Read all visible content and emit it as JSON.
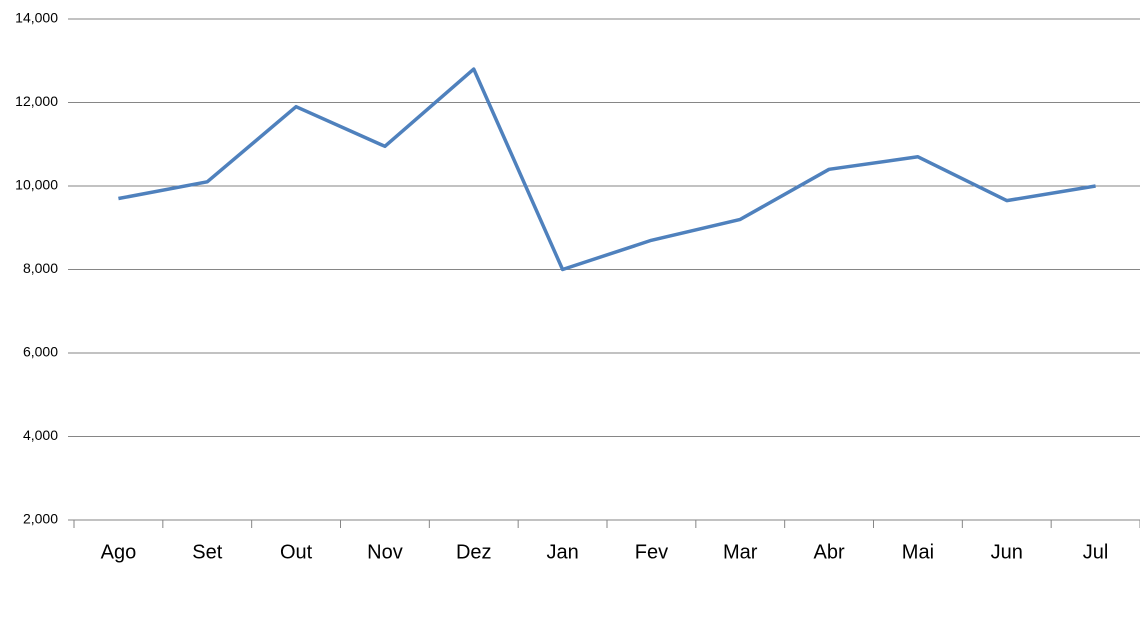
{
  "chart_data": {
    "type": "line",
    "categories": [
      "Ago",
      "Set",
      "Out",
      "Nov",
      "Dez",
      "Jan",
      "Fev",
      "Mar",
      "Abr",
      "Mai",
      "Jun",
      "Jul"
    ],
    "series": [
      {
        "color": "#4f81bd",
        "values": [
          9700,
          10100,
          11900,
          10950,
          12800,
          8000,
          8700,
          9200,
          10400,
          10700,
          9650,
          10000
        ]
      }
    ],
    "ylim": [
      2000,
      14000
    ],
    "yticks": [
      {
        "value": 2000,
        "label": "2,000"
      },
      {
        "value": 4000,
        "label": "4,000"
      },
      {
        "value": 6000,
        "label": "6,000"
      },
      {
        "value": 8000,
        "label": "8,000"
      },
      {
        "value": 10000,
        "label": "10,000"
      },
      {
        "value": 12000,
        "label": "12,000"
      },
      {
        "value": 14000,
        "label": "14,000"
      }
    ],
    "grid": true
  }
}
